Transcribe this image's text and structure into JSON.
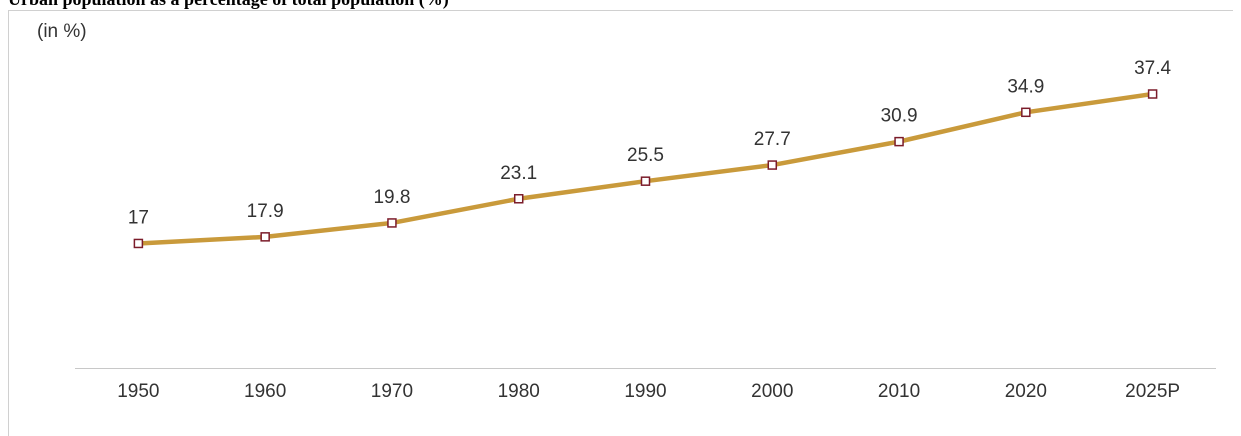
{
  "chart_data": {
    "type": "line",
    "title": "Urban population as a percentage of total population (%)",
    "unit_label": "(in %)",
    "categories": [
      "1950",
      "1960",
      "1970",
      "1980",
      "1990",
      "2000",
      "2010",
      "2020",
      "2025P"
    ],
    "series": [
      {
        "name": "Urban population",
        "color": "#c99a3b",
        "marker_color": "#7b1c2a",
        "values": [
          17,
          17.9,
          19.8,
          23.1,
          25.5,
          27.7,
          30.9,
          34.9,
          37.4
        ]
      }
    ]
  }
}
